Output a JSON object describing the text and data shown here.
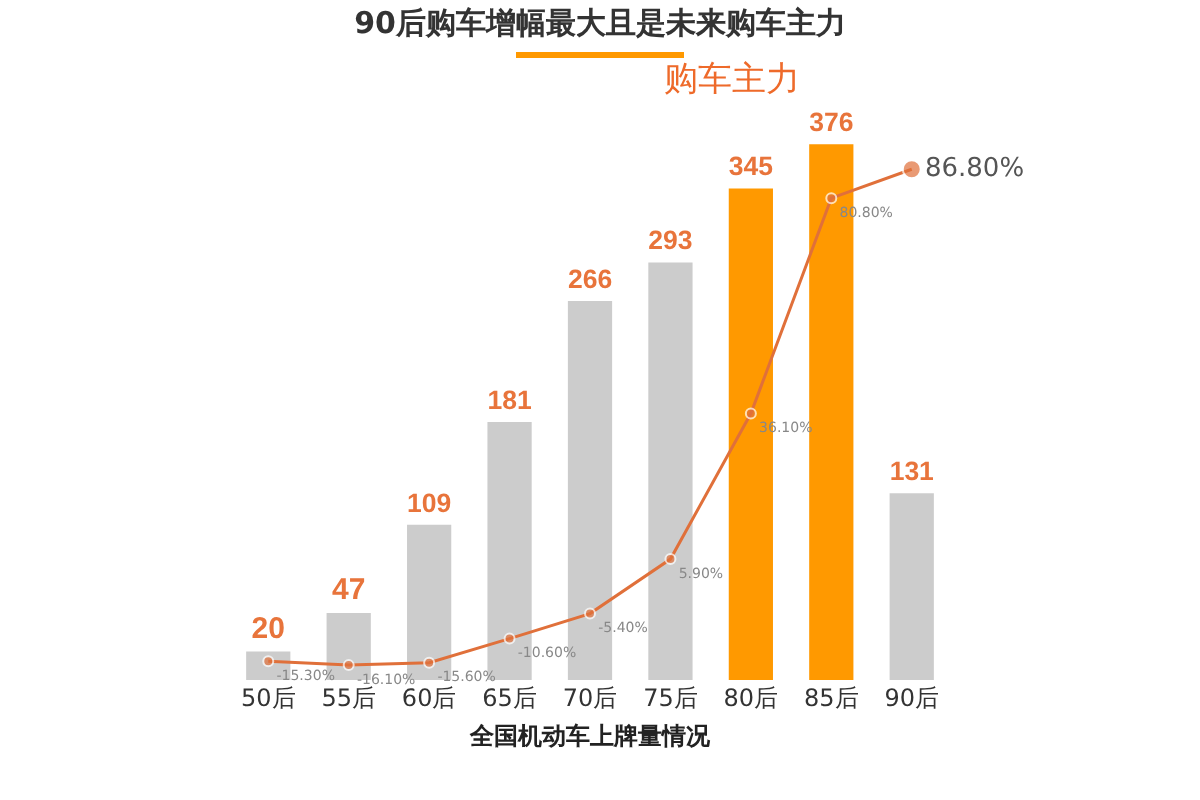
{
  "chart_data": {
    "type": "bar",
    "title": "90后购车增幅最大且是未来购车主力",
    "xlabel": "全国机动车上牌量情况",
    "categories": [
      "50后",
      "55后",
      "60后",
      "65后",
      "70后",
      "75后",
      "80后",
      "85后",
      "90后"
    ],
    "series": [
      {
        "colors": [
          "#cccccc",
          "#cccccc",
          "#cccccc",
          "#cccccc",
          "#cccccc",
          "#cccccc",
          "#ff9900",
          "#ff9900",
          "#cccccc"
        ],
        "values": [
          20,
          47,
          109,
          181,
          266,
          293,
          345,
          376,
          131
        ],
        "data_labels": true
      },
      {
        "type": "line",
        "axis": "y2",
        "color": "#e0703a",
        "marker": "circle",
        "values": [
          -15.3,
          -16.1,
          -15.6,
          -10.6,
          -5.4,
          5.9,
          36.1,
          80.8,
          86.8
        ],
        "value_labels": [
          "-15.30%",
          "-16.10%",
          "-15.60%",
          "-10.60%",
          "-5.40%",
          "5.90%",
          "36.10%",
          "80.80%",
          "86.80%"
        ]
      }
    ],
    "annotations": [
      "购车主力"
    ],
    "grid": false,
    "legend": false
  }
}
